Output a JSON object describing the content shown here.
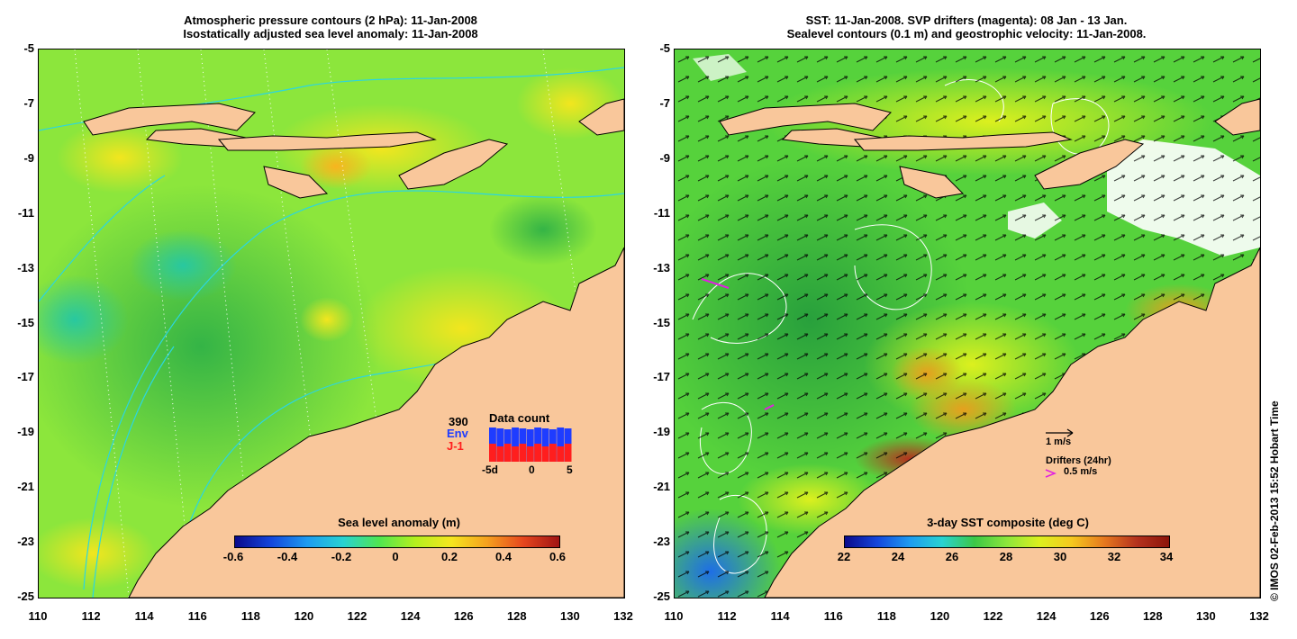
{
  "left_panel": {
    "title_line1": "Atmospheric pressure contours (2 hPa): 11-Jan-2008",
    "title_line2": "Isostatically adjusted sea level anomaly: 11-Jan-2008",
    "colorbar_title": "Sea level anomaly (m)",
    "colorbar_ticks": [
      "-0.6",
      "-0.4",
      "-0.2",
      "0",
      "0.2",
      "0.4",
      "0.6"
    ],
    "inset": {
      "count": "390",
      "env_label": "Env",
      "j1_label": "J-1",
      "title": "Data count",
      "x_ticks": [
        "-5d",
        "0",
        "5"
      ],
      "env_color": "#1e3cff",
      "j1_color": "#ff1e1e"
    }
  },
  "right_panel": {
    "title_line1": "SST: 11-Jan-2008. SVP drifters (magenta): 08 Jan - 13 Jan.",
    "title_line2": "Sealevel contours (0.1 m) and geostrophic velocity: 11-Jan-2008.",
    "colorbar_title": "3-day SST composite (deg C)",
    "colorbar_ticks": [
      "22",
      "24",
      "26",
      "28",
      "30",
      "32",
      "34"
    ],
    "velocity_scale": "1 m/s",
    "drifters_label": "Drifters (24hr)",
    "drifter_speed": "0.5 m/s"
  },
  "axes": {
    "y_ticks": [
      "-5",
      "-7",
      "-9",
      "-11",
      "-13",
      "-15",
      "-17",
      "-19",
      "-21",
      "-23",
      "-25"
    ],
    "x_ticks": [
      "110",
      "112",
      "114",
      "116",
      "118",
      "120",
      "122",
      "124",
      "126",
      "128",
      "130",
      "132"
    ]
  },
  "credit": "© IMOS 02-Feb-2013 15:52 Hobart Time",
  "colors": {
    "land": "#f9c79b",
    "sea_green": "#8ce63c",
    "contour_cyan": "#2bd6e0",
    "drifter_magenta": "#e020e0"
  }
}
